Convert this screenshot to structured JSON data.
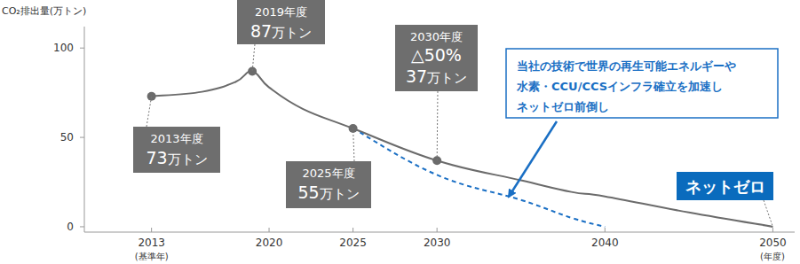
{
  "chart_data": {
    "type": "line",
    "y_label": "CO₂排出量(万トン)",
    "x_label": "(年度)",
    "x_note": {
      "x": 2013,
      "text": "(基準年)"
    },
    "x": [
      2013,
      2016,
      2018,
      2019,
      2020,
      2022,
      2025,
      2030,
      2035,
      2038,
      2040,
      2045,
      2050
    ],
    "series": [
      {
        "color": "#6b6b6b",
        "line_style": "solid",
        "values": [
          73,
          75.5,
          81,
          87,
          78,
          66,
          55,
          37,
          26,
          19.5,
          17,
          8,
          0
        ]
      },
      {
        "color": "#1a6fc4",
        "line_style": "dashed",
        "values": [
          null,
          null,
          null,
          null,
          null,
          null,
          55,
          29,
          15,
          5,
          0,
          null,
          null
        ]
      }
    ],
    "xlim": [
      2009,
      2051.3
    ],
    "xticks": [
      2013,
      2020,
      2025,
      2030,
      2040,
      2050
    ],
    "ylim": [
      -3,
      112
    ],
    "yticks": [
      0,
      50,
      100
    ],
    "grid": false,
    "annotations": [
      {
        "x": 2013,
        "y": 73,
        "title": "2013年度",
        "value": 73,
        "unit": "万トン"
      },
      {
        "x": 2019,
        "y": 87,
        "title": "2019年度",
        "value": 87,
        "unit": "万トン"
      },
      {
        "x": 2025,
        "y": 55,
        "title": "2025年度",
        "value": 55,
        "unit": "万トン"
      },
      {
        "x": 2030,
        "y": 37,
        "title": "2030年度",
        "change": "△50%",
        "value": 37,
        "unit": "万トン"
      },
      {
        "x": 2050,
        "y": 0,
        "title": "ネットゼロ",
        "color": "#0a6bbd"
      }
    ],
    "callout": {
      "color": "#1a6fc4",
      "lines": [
        "当社の技術で世界の再生可能エネルギーや",
        "水素・CCU/CCSインフラ確立を加速し",
        "ネットゼロ前倒し"
      ]
    }
  }
}
